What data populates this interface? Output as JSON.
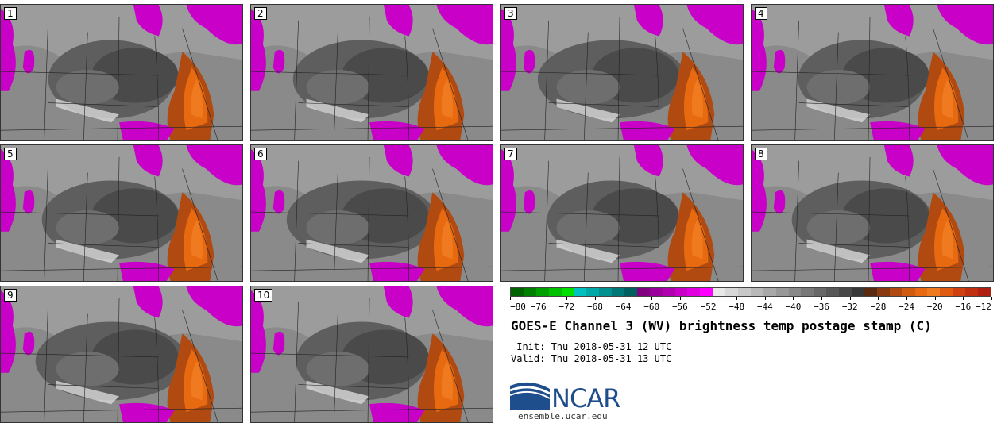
{
  "title": "GOES-E Channel 3 (WV) brightness temp postage stamp (C)",
  "init_label": " Init: Thu 2018-05-31 12 UTC",
  "valid_label": "Valid: Thu 2018-05-31 13 UTC",
  "members": [
    "1",
    "2",
    "3",
    "4",
    "5",
    "6",
    "7",
    "8",
    "9",
    "10"
  ],
  "colorbar": {
    "ticks": [
      "−80",
      "−76",
      "−72",
      "−68",
      "−64",
      "−60",
      "−56",
      "−52",
      "−48",
      "−44",
      "−40",
      "−36",
      "−32",
      "−28",
      "−24",
      "−20",
      "−16",
      "−12"
    ],
    "colors": [
      "#006400",
      "#008000",
      "#00a000",
      "#00c000",
      "#00e000",
      "#00c0c0",
      "#00a8a8",
      "#009090",
      "#007878",
      "#006060",
      "#800080",
      "#9a009a",
      "#b000b0",
      "#c800c8",
      "#e000e0",
      "#ff00ff",
      "#e8e8e8",
      "#d8d8d8",
      "#c8c8c8",
      "#b8b8b8",
      "#a8a8a8",
      "#989898",
      "#888888",
      "#787878",
      "#686868",
      "#585858",
      "#484848",
      "#383838",
      "#5a2a10",
      "#8a3a10",
      "#b04a10",
      "#d05a10",
      "#e86a10",
      "#f07a20",
      "#e05a10",
      "#d04010",
      "#c03010",
      "#b02010"
    ]
  },
  "logo": {
    "text": "NCAR",
    "url": "ensemble.ucar.edu"
  }
}
